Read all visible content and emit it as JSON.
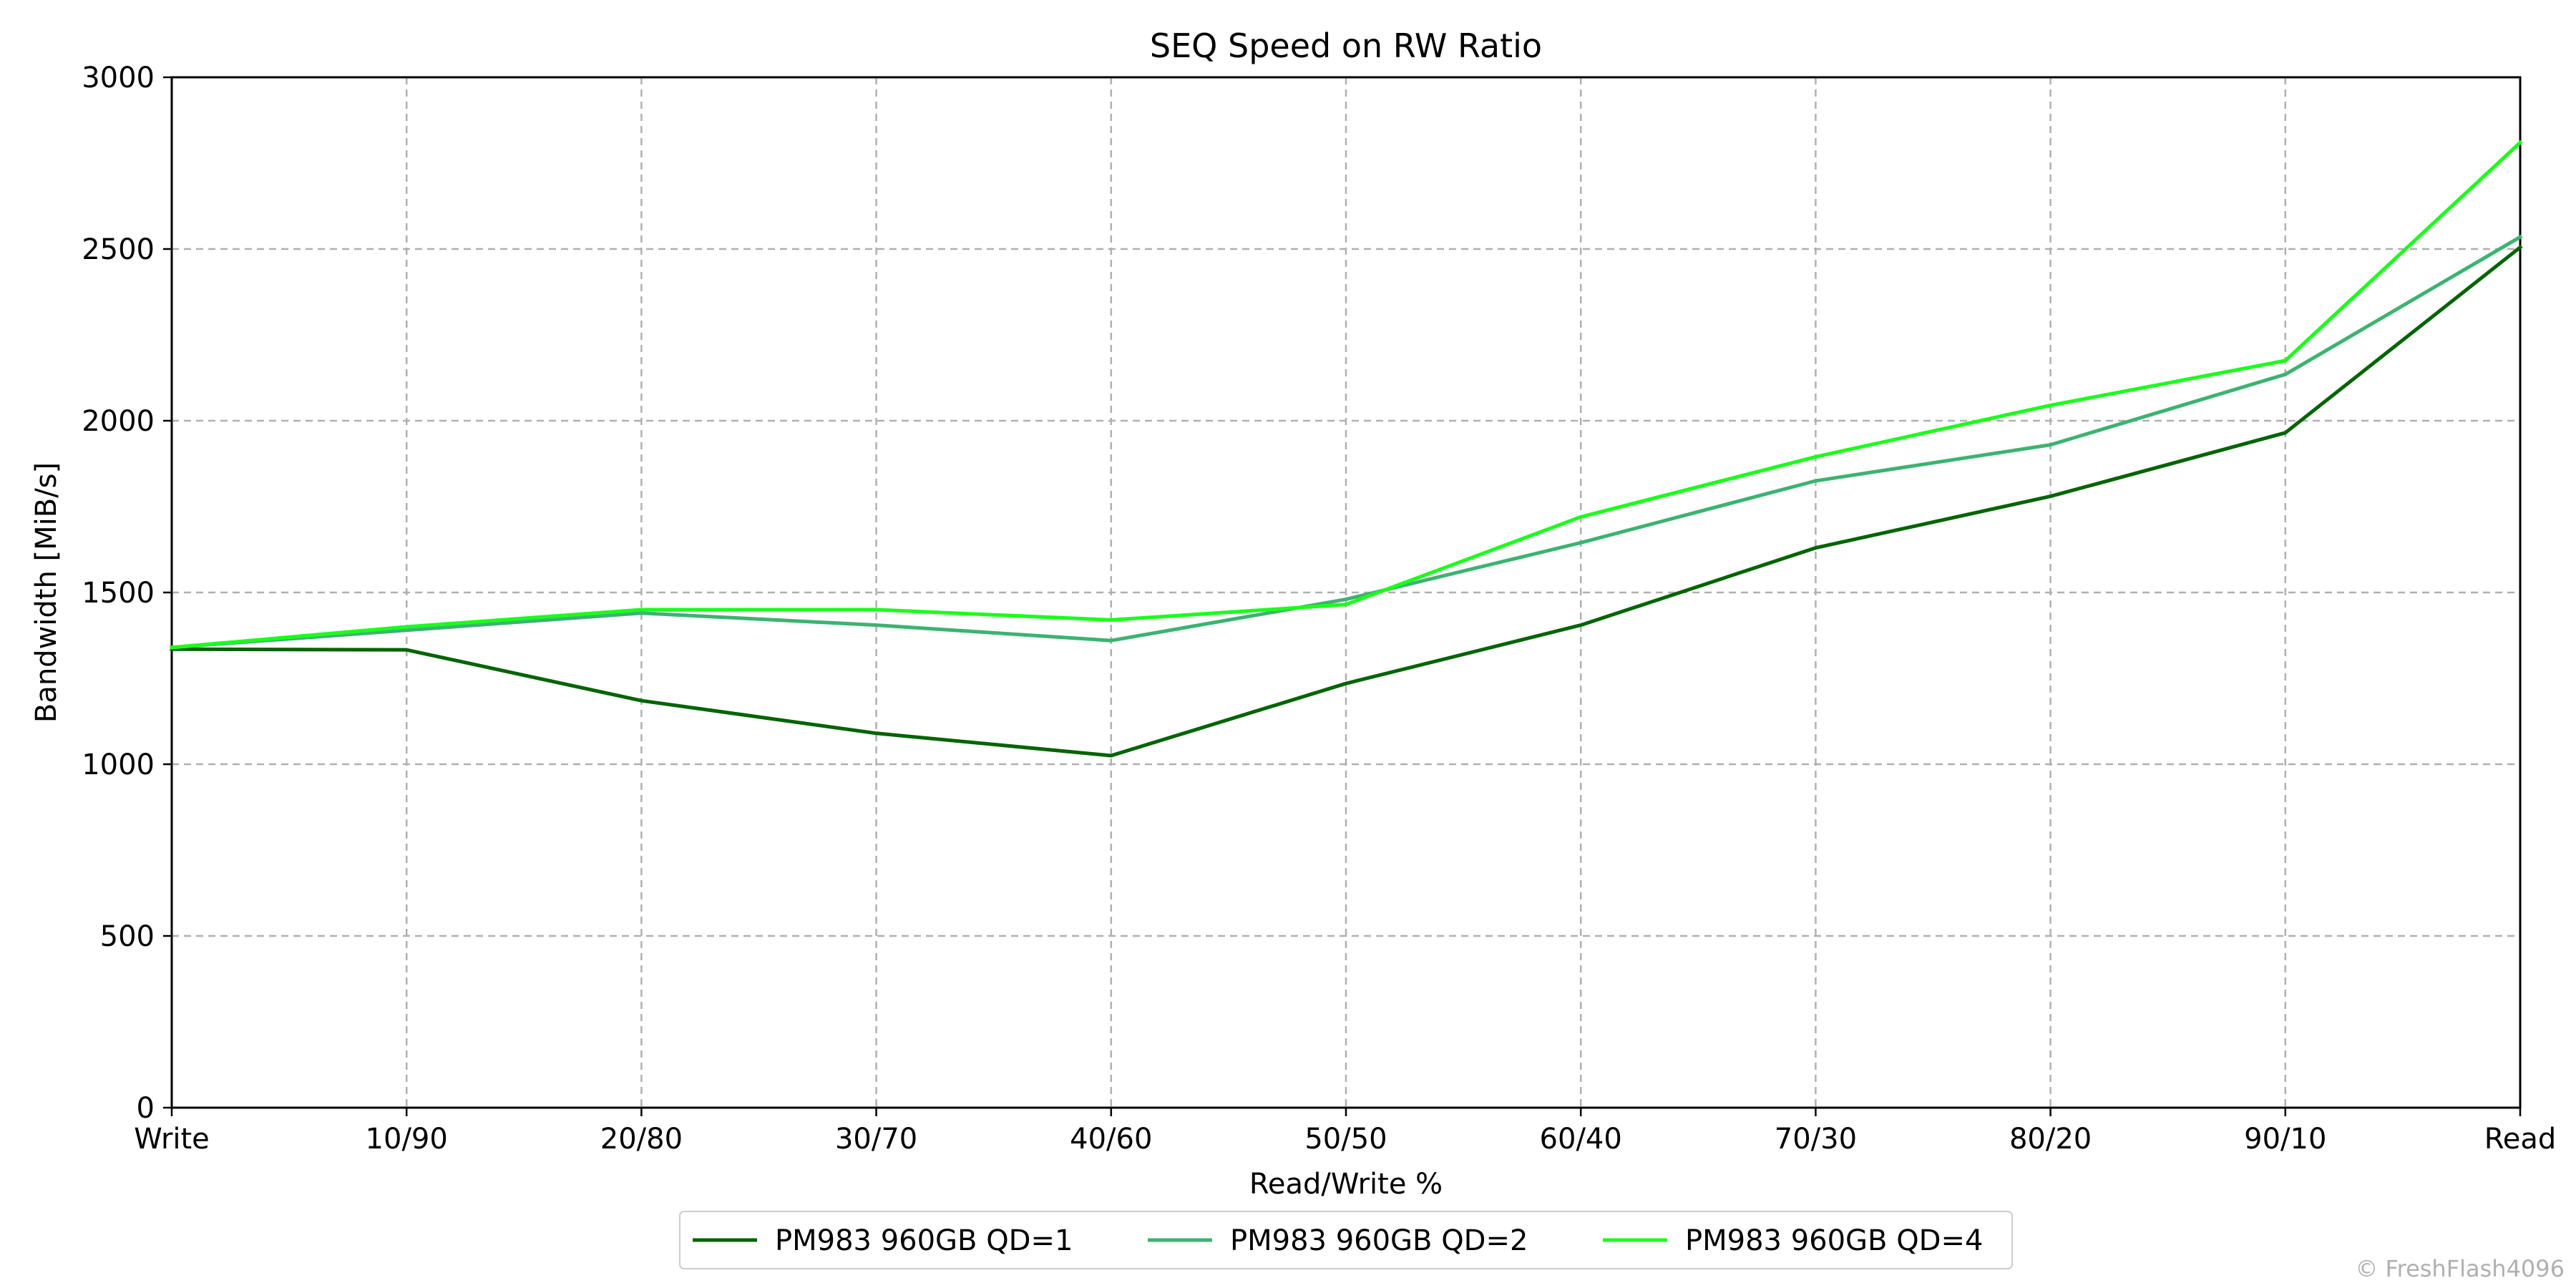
{
  "chart_data": {
    "type": "line",
    "title": "SEQ Speed on RW Ratio",
    "xlabel": "Read/Write %",
    "ylabel": "Bandwidth [MiB/s]",
    "categories": [
      "Write",
      "10/90",
      "20/80",
      "30/70",
      "40/60",
      "50/50",
      "60/40",
      "70/30",
      "80/20",
      "90/10",
      "Read"
    ],
    "ylim": [
      0,
      3000
    ],
    "yticks": [
      "0",
      "500",
      "1000",
      "1500",
      "2000",
      "2500",
      "3000"
    ],
    "grid": true,
    "legend_position": "bottom-center",
    "series": [
      {
        "name": "PM983 960GB QD=1",
        "color": "#006400",
        "values": [
          1335,
          1333,
          1185,
          1090,
          1025,
          1235,
          1405,
          1630,
          1780,
          1965,
          2505
        ]
      },
      {
        "name": "PM983 960GB QD=2",
        "color": "#3cb371",
        "values": [
          1340,
          1390,
          1440,
          1405,
          1360,
          1480,
          1645,
          1825,
          1930,
          2135,
          2535
        ]
      },
      {
        "name": "PM983 960GB QD=4",
        "color": "#1aff1a",
        "values": [
          1340,
          1400,
          1450,
          1450,
          1420,
          1465,
          1720,
          1895,
          2045,
          2175,
          2810
        ]
      }
    ]
  },
  "watermark": "© FreshFlash4096"
}
